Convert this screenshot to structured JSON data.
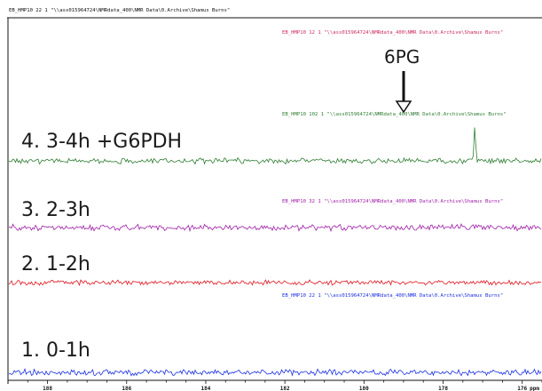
{
  "header": {
    "top_title": "EB_HMP10  22  1  \"\\\\ass015964724\\NMRdata_400\\NMR Data\\0.Archive\\Shamus Burns\""
  },
  "colors": {
    "spectrum_1": "#1a2fe0",
    "spectrum_2": "#e0141e",
    "spectrum_3": "#a01ea8",
    "spectrum_4": "#2f7d32",
    "axis": "#111111"
  },
  "chart_data": {
    "type": "line",
    "title": "",
    "xlabel": "",
    "ylabel": "",
    "x_axis": {
      "direction": "reversed",
      "xlim": [
        189,
        175.5
      ],
      "tick_values": [
        188,
        186,
        184,
        182,
        180,
        178,
        176
      ],
      "unit_label": "ppm"
    },
    "annotation": {
      "text": "6PG",
      "x": 177.2,
      "arrow": "down"
    },
    "series": [
      {
        "name": "4.  3-4h +G6PDH",
        "color": "#2f7d32",
        "header": "EB_HMP10  102  1  \"\\\\ass015964724\\NMRdata_400\\NMR Data\\0.Archive\\Shamus Burns\"",
        "peaks": [
          {
            "x": 177.2,
            "height": 1.0
          }
        ]
      },
      {
        "name": "3.  2-3h",
        "color": "#a01ea8",
        "header": "EB_HMP10  32  1  \"\\\\ass015964724\\NMRdata_400\\NMR Data\\0.Archive\\Shamus Burns\"",
        "peaks": []
      },
      {
        "name": "2.  1-2h",
        "color": "#e0141e",
        "header": "EB_HMP10  12  1  \"\\\\ass015964724\\NMRdata_400\\NMR Data\\0.Archive\\Shamus Burns\"",
        "peaks": []
      },
      {
        "name": "1.  0-1h",
        "color": "#1a2fe0",
        "header": "EB_HMP10  22  1  \"\\\\ass015964724\\NMRdata_400\\NMR Data\\0.Archive\\Shamus Burns\"",
        "peaks": []
      }
    ]
  }
}
